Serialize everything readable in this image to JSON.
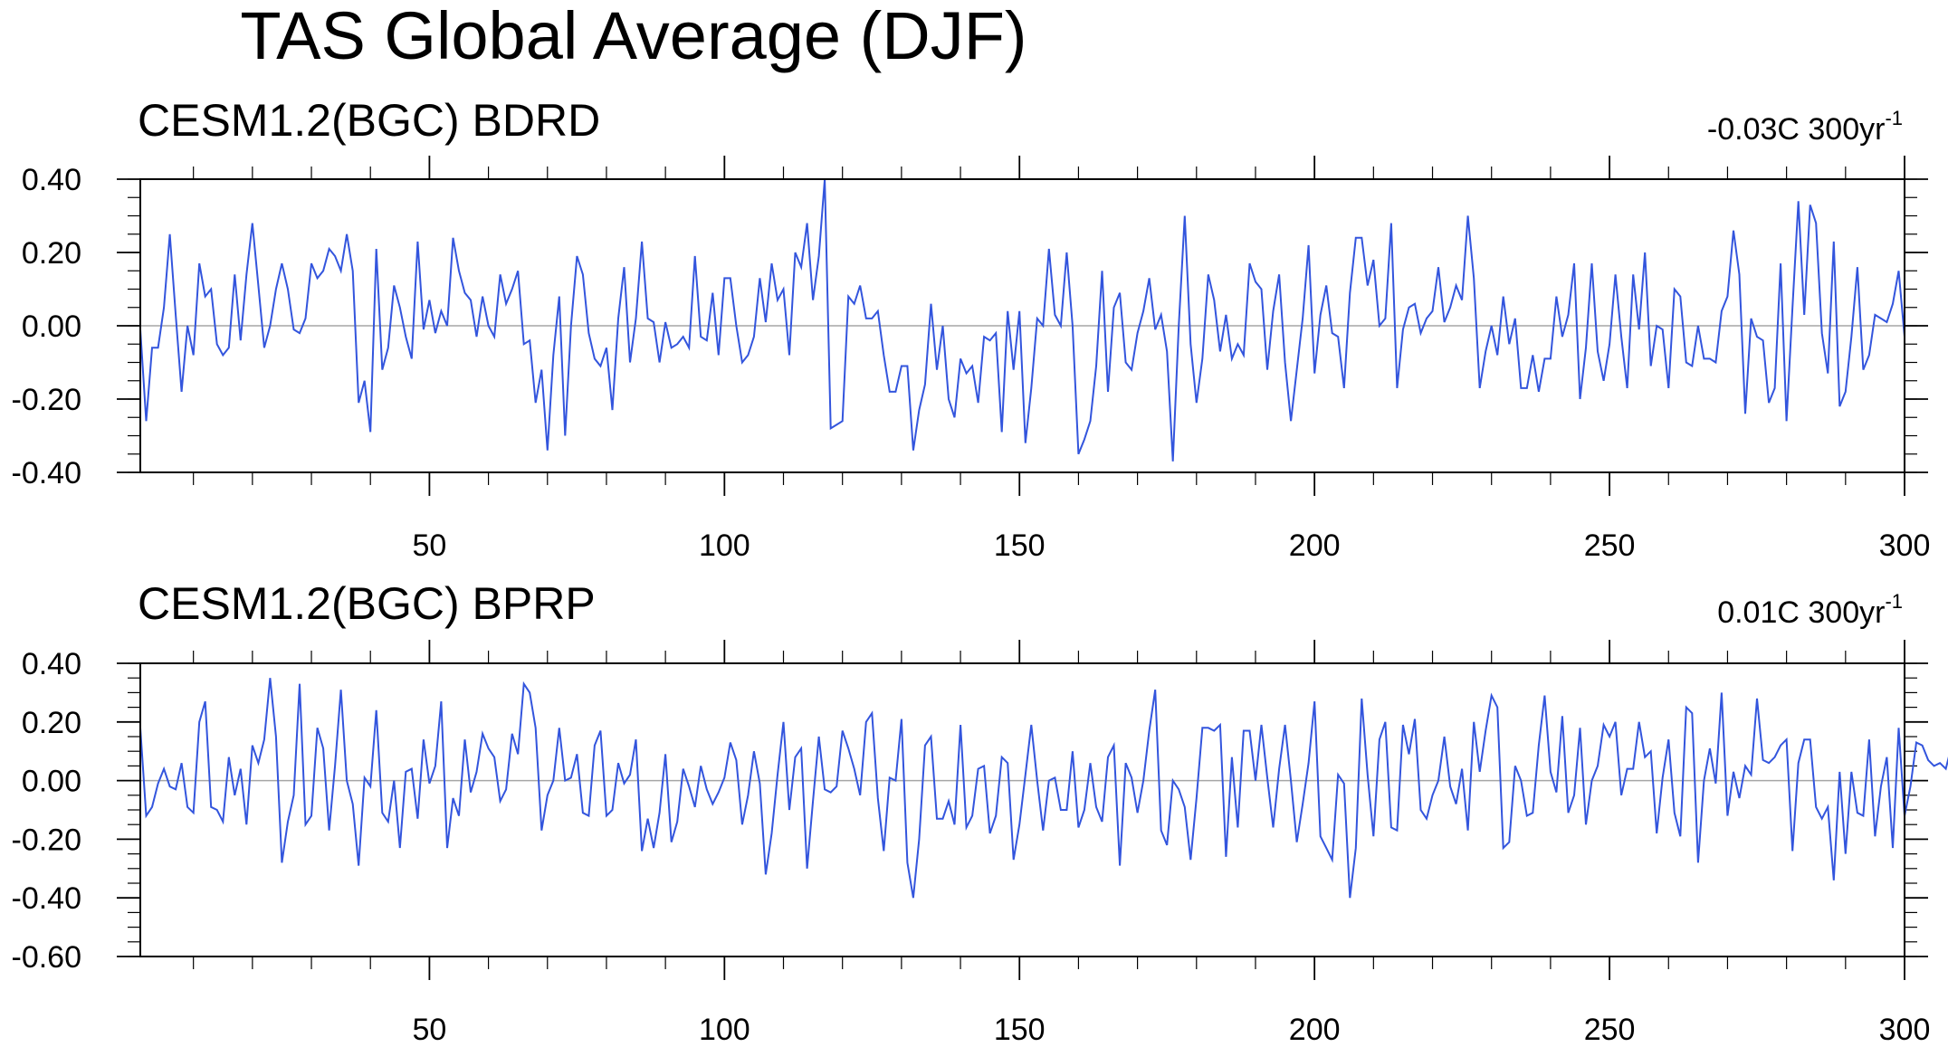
{
  "title": "TAS Global Average (DJF)",
  "colors": {
    "line": "#3355dd",
    "zero": "#a6a6a6",
    "axis": "#000000"
  },
  "chart_data": [
    {
      "type": "line",
      "title": "CESM1.2(BGC) BDRD",
      "trend": "-0.03C 300yr",
      "trend_sup": "-1",
      "xlabel": "",
      "ylabel": "",
      "xlim": [
        1,
        300
      ],
      "ylim": [
        -0.4,
        0.4
      ],
      "xticks": [
        50,
        100,
        150,
        200,
        250,
        300
      ],
      "xtick_labels": [
        "50",
        "100",
        "150",
        "200",
        "250",
        "300"
      ],
      "yticks": [
        0.4,
        0.2,
        0.0,
        -0.2,
        -0.4
      ],
      "ytick_labels": [
        "0.40",
        "0.20",
        "0.00",
        "-0.20",
        "-0.40"
      ],
      "x_start": 1,
      "values": [
        -0.01,
        -0.26,
        -0.06,
        -0.06,
        0.05,
        0.25,
        0.03,
        -0.18,
        0.0,
        -0.08,
        0.17,
        0.08,
        0.1,
        -0.05,
        -0.08,
        -0.06,
        0.14,
        -0.04,
        0.14,
        0.28,
        0.11,
        -0.06,
        0.0,
        0.1,
        0.17,
        0.1,
        -0.01,
        -0.02,
        0.02,
        0.17,
        0.13,
        0.15,
        0.21,
        0.19,
        0.15,
        0.25,
        0.15,
        -0.21,
        -0.15,
        -0.29,
        0.21,
        -0.12,
        -0.06,
        0.11,
        0.05,
        -0.03,
        -0.09,
        0.23,
        -0.01,
        0.07,
        -0.02,
        0.04,
        0.0,
        0.24,
        0.15,
        0.09,
        0.07,
        -0.03,
        0.08,
        0.0,
        -0.03,
        0.14,
        0.06,
        0.1,
        0.15,
        -0.05,
        -0.04,
        -0.21,
        -0.12,
        -0.34,
        -0.08,
        0.08,
        -0.3,
        0.0,
        0.19,
        0.14,
        -0.02,
        -0.09,
        -0.11,
        -0.06,
        -0.23,
        0.02,
        0.16,
        -0.1,
        0.02,
        0.23,
        0.02,
        0.01,
        -0.1,
        0.01,
        -0.06,
        -0.05,
        -0.03,
        -0.06,
        0.19,
        -0.03,
        -0.04,
        0.09,
        -0.08,
        0.13,
        0.13,
        0.0,
        -0.1,
        -0.08,
        -0.03,
        0.13,
        0.01,
        0.17,
        0.07,
        0.1,
        -0.08,
        0.2,
        0.16,
        0.28,
        0.07,
        0.19,
        0.4,
        -0.28,
        -0.27,
        -0.26,
        0.08,
        0.06,
        0.11,
        0.02,
        0.02,
        0.04,
        -0.08,
        -0.18,
        -0.18,
        -0.11,
        -0.11,
        -0.34,
        -0.23,
        -0.16,
        0.06,
        -0.12,
        0.0,
        -0.2,
        -0.25,
        -0.09,
        -0.13,
        -0.11,
        -0.21,
        -0.03,
        -0.04,
        -0.02,
        -0.29,
        0.04,
        -0.12,
        0.04,
        -0.32,
        -0.17,
        0.02,
        0.0,
        0.21,
        0.03,
        0.0,
        0.2,
        0.0,
        -0.35,
        -0.31,
        -0.26,
        -0.11,
        0.15,
        -0.18,
        0.05,
        0.09,
        -0.1,
        -0.12,
        -0.02,
        0.04,
        0.13,
        -0.01,
        0.03,
        -0.07,
        -0.37,
        0.0,
        0.3,
        -0.05,
        -0.21,
        -0.09,
        0.14,
        0.07,
        -0.07,
        0.03,
        -0.09,
        -0.05,
        -0.08,
        0.17,
        0.12,
        0.1,
        -0.12,
        0.04,
        0.14,
        -0.1,
        -0.26,
        -0.12,
        0.02,
        0.22,
        -0.13,
        0.03,
        0.11,
        -0.02,
        -0.03,
        -0.17,
        0.09,
        0.24,
        0.24,
        0.11,
        0.18,
        0.0,
        0.02,
        0.28,
        -0.17,
        -0.01,
        0.05,
        0.06,
        -0.02,
        0.02,
        0.04,
        0.16,
        0.01,
        0.05,
        0.11,
        0.07,
        0.3,
        0.13,
        -0.17,
        -0.07,
        0.0,
        -0.08,
        0.08,
        -0.05,
        0.02,
        -0.17,
        -0.17,
        -0.08,
        -0.18,
        -0.09,
        -0.09,
        0.08,
        -0.03,
        0.03,
        0.17,
        -0.2,
        -0.06,
        0.17,
        -0.07,
        -0.15,
        -0.05,
        0.14,
        -0.03,
        -0.17,
        0.14,
        -0.01,
        0.2,
        -0.11,
        0.0,
        -0.01,
        -0.17,
        0.1,
        0.08,
        -0.1,
        -0.11,
        0.0,
        -0.09,
        -0.09,
        -0.1,
        0.04,
        0.08,
        0.26,
        0.14,
        -0.24,
        0.02,
        -0.03,
        -0.04,
        -0.21,
        -0.17,
        0.17,
        -0.26,
        0.05,
        0.34,
        0.03,
        0.33,
        0.28,
        -0.02,
        -0.13,
        0.23,
        -0.22,
        -0.18,
        -0.03,
        0.16,
        -0.12,
        -0.08,
        0.03,
        0.02,
        0.01,
        0.06,
        0.15,
        -0.03
      ]
    },
    {
      "type": "line",
      "title": "CESM1.2(BGC) BPRP",
      "trend": "0.01C 300yr",
      "trend_sup": "-1",
      "xlabel": "",
      "ylabel": "",
      "xlim": [
        1,
        300
      ],
      "ylim": [
        -0.6,
        0.4
      ],
      "xticks": [
        50,
        100,
        150,
        200,
        250,
        300
      ],
      "xtick_labels": [
        "50",
        "100",
        "150",
        "200",
        "250",
        "300"
      ],
      "yticks": [
        0.4,
        0.2,
        0.0,
        -0.2,
        -0.4,
        -0.6
      ],
      "ytick_labels": [
        "0.40",
        "0.20",
        "0.00",
        "-0.20",
        "-0.40",
        "-0.60"
      ],
      "x_start": 1,
      "values": [
        0.18,
        -0.12,
        -0.09,
        -0.01,
        0.04,
        -0.02,
        -0.03,
        0.06,
        -0.09,
        -0.11,
        0.2,
        0.27,
        -0.09,
        -0.1,
        -0.14,
        0.08,
        -0.05,
        0.04,
        -0.15,
        0.12,
        0.06,
        0.14,
        0.35,
        0.15,
        -0.28,
        -0.14,
        -0.05,
        0.33,
        -0.15,
        -0.12,
        0.18,
        0.11,
        -0.17,
        0.05,
        0.31,
        0.0,
        -0.08,
        -0.29,
        0.01,
        -0.02,
        0.24,
        -0.11,
        -0.14,
        0.0,
        -0.23,
        0.03,
        0.04,
        -0.13,
        0.14,
        -0.01,
        0.05,
        0.27,
        -0.23,
        -0.06,
        -0.12,
        0.14,
        -0.04,
        0.03,
        0.16,
        0.11,
        0.08,
        -0.07,
        -0.03,
        0.16,
        0.09,
        0.33,
        0.3,
        0.18,
        -0.17,
        -0.05,
        0.0,
        0.18,
        0.0,
        0.01,
        0.09,
        -0.11,
        -0.12,
        0.12,
        0.17,
        -0.12,
        -0.1,
        0.06,
        -0.01,
        0.02,
        0.14,
        -0.24,
        -0.13,
        -0.23,
        -0.11,
        0.09,
        -0.21,
        -0.14,
        0.04,
        -0.02,
        -0.09,
        0.05,
        -0.03,
        -0.08,
        -0.04,
        0.01,
        0.13,
        0.07,
        -0.15,
        -0.05,
        0.1,
        -0.01,
        -0.32,
        -0.18,
        0.02,
        0.2,
        -0.1,
        0.08,
        0.11,
        -0.3,
        -0.07,
        0.15,
        -0.03,
        -0.04,
        -0.02,
        0.17,
        0.11,
        0.04,
        -0.05,
        0.2,
        0.23,
        -0.06,
        -0.24,
        0.01,
        0.0,
        0.21,
        -0.28,
        -0.4,
        -0.2,
        0.12,
        0.15,
        -0.13,
        -0.13,
        -0.07,
        -0.15,
        0.19,
        -0.16,
        -0.12,
        0.04,
        0.05,
        -0.18,
        -0.12,
        0.08,
        0.06,
        -0.27,
        -0.15,
        0.02,
        0.19,
        0.0,
        -0.17,
        0.0,
        0.01,
        -0.1,
        -0.1,
        0.1,
        -0.16,
        -0.1,
        0.06,
        -0.09,
        -0.14,
        0.08,
        0.12,
        -0.29,
        0.06,
        0.01,
        -0.11,
        0.0,
        0.17,
        0.31,
        -0.17,
        -0.22,
        0.0,
        -0.03,
        -0.09,
        -0.27,
        -0.06,
        0.18,
        0.18,
        0.17,
        0.19,
        -0.26,
        0.08,
        -0.16,
        0.17,
        0.17,
        0.0,
        0.19,
        0.01,
        -0.16,
        0.04,
        0.19,
        0.0,
        -0.21,
        -0.08,
        0.06,
        0.27,
        -0.19,
        -0.23,
        -0.27,
        0.02,
        -0.01,
        -0.4,
        -0.23,
        0.28,
        0.02,
        -0.19,
        0.14,
        0.2,
        -0.16,
        -0.17,
        0.19,
        0.09,
        0.21,
        -0.1,
        -0.13,
        -0.05,
        0.0,
        0.15,
        -0.02,
        -0.08,
        0.04,
        -0.17,
        0.2,
        0.03,
        0.17,
        0.29,
        0.25,
        -0.23,
        -0.21,
        0.05,
        0.0,
        -0.12,
        -0.11,
        0.12,
        0.29,
        0.03,
        -0.04,
        0.22,
        -0.11,
        -0.05,
        0.18,
        -0.15,
        0.0,
        0.05,
        0.19,
        0.15,
        0.2,
        -0.05,
        0.04,
        0.04,
        0.2,
        0.08,
        0.1,
        -0.18,
        0.01,
        0.14,
        -0.11,
        -0.19,
        0.25,
        0.23,
        -0.28,
        0.0,
        0.11,
        -0.01,
        0.3,
        -0.12,
        0.03,
        -0.06,
        0.05,
        0.02,
        0.28,
        0.07,
        0.06,
        0.08,
        0.12,
        0.14,
        -0.24,
        0.06,
        0.14,
        0.14,
        -0.09,
        -0.13,
        -0.09,
        -0.34,
        0.03,
        -0.25,
        0.03,
        -0.11,
        -0.12,
        0.14,
        -0.19,
        -0.02,
        0.08,
        -0.23,
        0.18,
        -0.12,
        -0.02,
        0.13,
        0.12,
        0.07,
        0.05,
        0.06,
        0.04,
        0.12
      ]
    }
  ]
}
